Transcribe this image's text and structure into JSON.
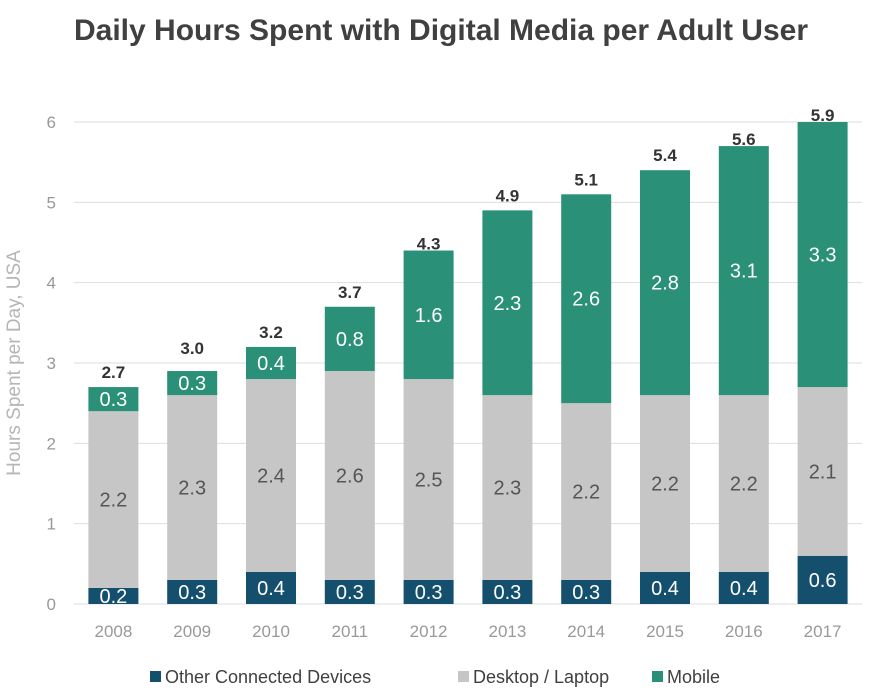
{
  "chart_data": {
    "type": "bar",
    "stacked": true,
    "title": "Daily Hours Spent with Digital Media per Adult User",
    "xlabel": "",
    "ylabel": "Hours Spent per Day, USA",
    "ylim": [
      0,
      6
    ],
    "yticks": [
      "0",
      "1",
      "2",
      "3",
      "4",
      "5",
      "6"
    ],
    "grid": true,
    "legend_position": "bottom",
    "categories": [
      "2008",
      "2009",
      "2010",
      "2011",
      "2012",
      "2013",
      "2014",
      "2015",
      "2016",
      "2017"
    ],
    "series": [
      {
        "name": "Other Connected Devices",
        "color": "#14506e",
        "values": [
          0.2,
          0.3,
          0.4,
          0.3,
          0.3,
          0.3,
          0.3,
          0.4,
          0.4,
          0.6
        ],
        "labels": [
          "0.2",
          "0.3",
          "0.4",
          "0.3",
          "0.3",
          "0.3",
          "0.3",
          "0.4",
          "0.4",
          "0.6"
        ]
      },
      {
        "name": "Desktop / Laptop",
        "color": "#c6c6c6",
        "values": [
          2.2,
          2.3,
          2.4,
          2.6,
          2.5,
          2.3,
          2.2,
          2.2,
          2.2,
          2.1
        ],
        "labels": [
          "2.2",
          "2.3",
          "2.4",
          "2.6",
          "2.5",
          "2.3",
          "2.2",
          "2.2",
          "2.2",
          "2.1"
        ]
      },
      {
        "name": "Mobile",
        "color": "#2a9077",
        "values": [
          0.3,
          0.3,
          0.4,
          0.8,
          1.6,
          2.3,
          2.6,
          2.8,
          3.1,
          3.3
        ],
        "labels": [
          "0.3",
          "0.3",
          "0.4",
          "0.8",
          "1.6",
          "2.3",
          "2.6",
          "2.8",
          "3.1",
          "3.3"
        ]
      }
    ],
    "totals": [
      2.7,
      3.0,
      3.2,
      3.7,
      4.3,
      4.9,
      5.1,
      5.4,
      5.6,
      5.9
    ],
    "total_labels": [
      "2.7",
      "3.0",
      "3.2",
      "3.7",
      "4.3",
      "4.9",
      "5.1",
      "5.4",
      "5.6",
      "5.9"
    ]
  }
}
